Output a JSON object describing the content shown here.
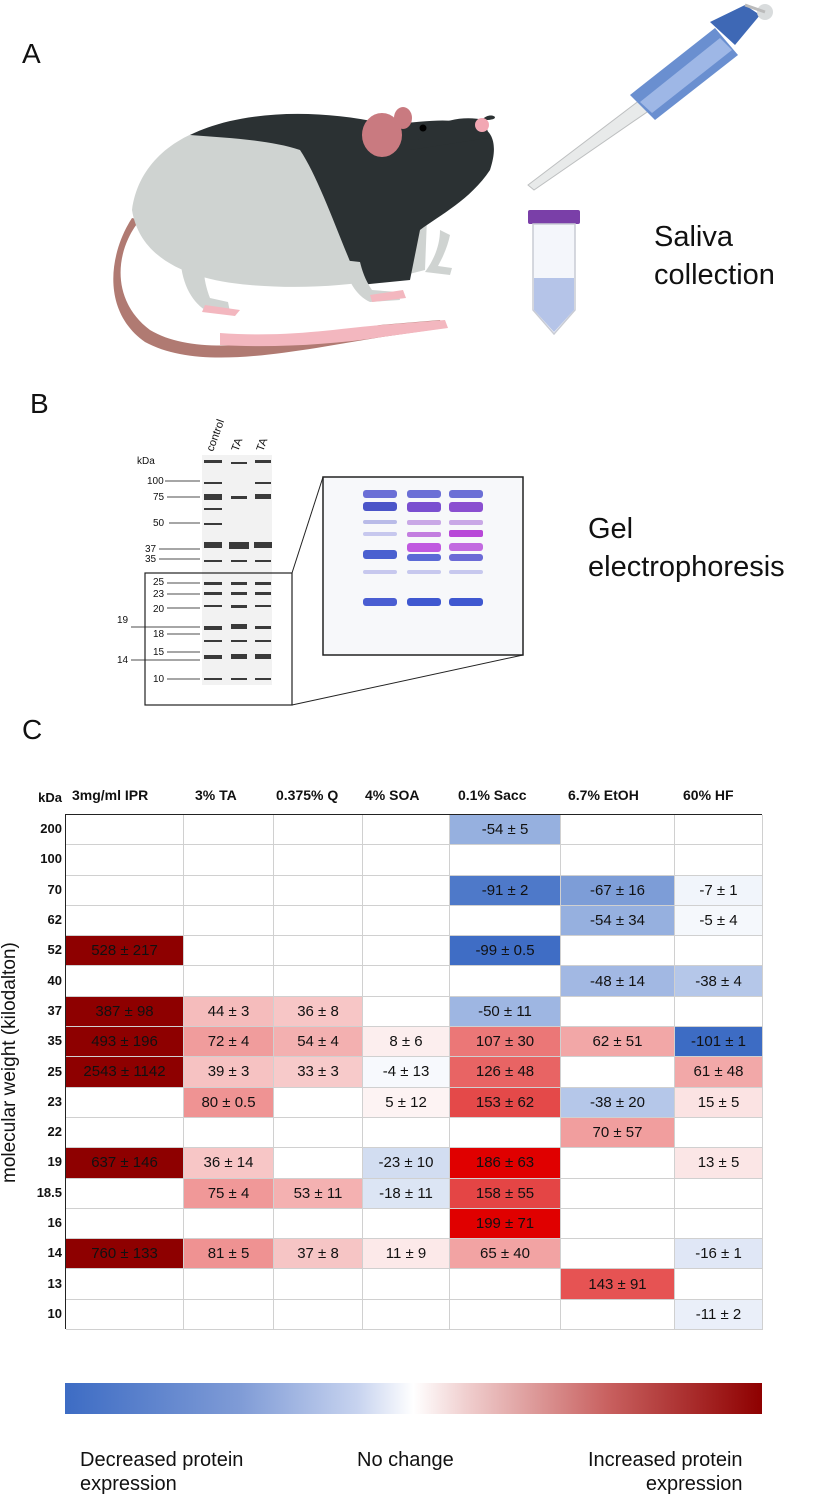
{
  "panels": {
    "a": {
      "letter": "A",
      "label": [
        "Saliva",
        "collection"
      ]
    },
    "b": {
      "letter": "B",
      "label": [
        "Gel",
        "electrophoresis"
      ]
    },
    "c": {
      "letter": "C"
    }
  },
  "gel": {
    "unit": "kDa",
    "lanes": [
      "control",
      "TA",
      "TA"
    ],
    "markers": [
      "100",
      "75",
      "50",
      "37",
      "35",
      "25",
      "23",
      "20",
      "19",
      "18",
      "15",
      "14",
      "10"
    ]
  },
  "heatmap": {
    "corner": "kDa",
    "ylabel": "molecular weight (kilodalton)",
    "columns": [
      "3mg/ml IPR",
      "3% TA",
      "0.375% Q",
      "4% SOA",
      "0.1% Sacc",
      "6.7% EtOH",
      "60% HF"
    ],
    "rows": [
      {
        "kda": "200",
        "cells": [
          "",
          "",
          "",
          "",
          "-54 ± 5",
          "",
          ""
        ]
      },
      {
        "kda": "100",
        "cells": [
          "",
          "",
          "",
          "",
          "",
          "",
          ""
        ]
      },
      {
        "kda": "70",
        "cells": [
          "",
          "",
          "",
          "",
          "-91 ± 2",
          "-67 ± 16",
          "-7 ± 1"
        ]
      },
      {
        "kda": "62",
        "cells": [
          "",
          "",
          "",
          "",
          "",
          "-54 ± 34",
          "-5 ± 4"
        ]
      },
      {
        "kda": "52",
        "cells": [
          "528 ± 217",
          "",
          "",
          "",
          "-99 ± 0.5",
          "",
          ""
        ]
      },
      {
        "kda": "40",
        "cells": [
          "",
          "",
          "",
          "",
          "",
          "-48 ± 14",
          "-38 ± 4"
        ]
      },
      {
        "kda": "37",
        "cells": [
          "387 ± 98",
          "44 ± 3",
          "36 ± 8",
          "",
          "-50 ± 11",
          "",
          ""
        ]
      },
      {
        "kda": "35",
        "cells": [
          "493 ± 196",
          "72 ± 4",
          "54 ± 4",
          "8 ± 6",
          "107 ± 30",
          "62 ± 51",
          "-101 ± 1"
        ]
      },
      {
        "kda": "25",
        "cells": [
          "2543 ± 1142",
          "39 ± 3",
          "33 ± 3",
          "-4 ± 13",
          "126 ± 48",
          "",
          "61 ± 48"
        ]
      },
      {
        "kda": "23",
        "cells": [
          "",
          "80 ± 0.5",
          "",
          "5 ± 12",
          "153 ± 62",
          "-38 ± 20",
          "15 ± 5"
        ]
      },
      {
        "kda": "22",
        "cells": [
          "",
          "",
          "",
          "",
          "",
          "70 ± 57",
          ""
        ]
      },
      {
        "kda": "19",
        "cells": [
          "637 ± 146",
          "36 ± 14",
          "",
          "-23 ± 10",
          "186 ± 63",
          "",
          "13 ± 5"
        ]
      },
      {
        "kda": "18.5",
        "cells": [
          "",
          "75 ± 4",
          "53 ± 11",
          "-18 ± 11",
          "158 ± 55",
          "",
          ""
        ]
      },
      {
        "kda": "16",
        "cells": [
          "",
          "",
          "",
          "",
          "199 ± 71",
          "",
          ""
        ]
      },
      {
        "kda": "14",
        "cells": [
          "760 ± 133",
          "81 ± 5",
          "37 ± 8",
          "11 ± 9",
          "65 ± 40",
          "",
          "-16 ± 1"
        ]
      },
      {
        "kda": "13",
        "cells": [
          "",
          "",
          "",
          "",
          "",
          "143 ± 91",
          ""
        ]
      },
      {
        "kda": "10",
        "cells": [
          "",
          "",
          "",
          "",
          "",
          "",
          "-11 ± 2"
        ]
      }
    ]
  },
  "legend": {
    "left": [
      "Decreased protein",
      "expression"
    ],
    "center": "No change",
    "right": [
      "Increased protein",
      "expression"
    ]
  },
  "colors": {
    "decrease": "#3d6cc4",
    "neutral": "#ffffff",
    "increase": "#8e0000",
    "peak_red": "#e60000"
  }
}
